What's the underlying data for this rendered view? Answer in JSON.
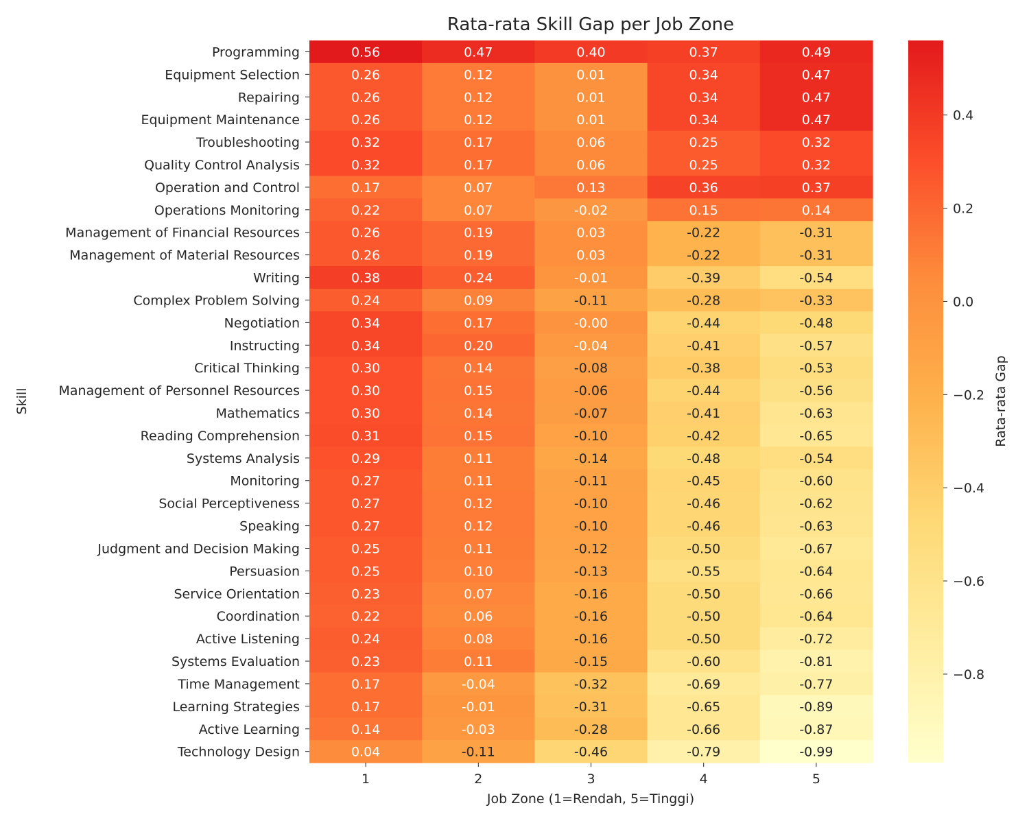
{
  "chart_data": {
    "type": "heatmap",
    "title": "Rata-rata Skill Gap per Job Zone",
    "xlabel": "Job Zone (1=Rendah, 5=Tinggi)",
    "ylabel": "Skill",
    "colorbar_label": "Rata-rata Gap",
    "colormap": "YlOrRd",
    "colorbar_range": [
      -0.99,
      0.56
    ],
    "colorbar_ticks": [
      "0.4",
      "0.2",
      "0.0",
      "−0.2",
      "−0.4",
      "−0.6",
      "−0.8"
    ],
    "x_categories": [
      "1",
      "2",
      "3",
      "4",
      "5"
    ],
    "y_categories": [
      "Programming",
      "Equipment Selection",
      "Repairing",
      "Equipment Maintenance",
      "Troubleshooting",
      "Quality Control Analysis",
      "Operation and Control",
      "Operations Monitoring",
      "Management of Financial Resources",
      "Management of Material Resources",
      "Writing",
      "Complex Problem Solving",
      "Negotiation",
      "Instructing",
      "Critical Thinking",
      "Management of Personnel Resources",
      "Mathematics",
      "Reading Comprehension",
      "Systems Analysis",
      "Monitoring",
      "Social Perceptiveness",
      "Speaking",
      "Judgment and Decision Making",
      "Persuasion",
      "Service Orientation",
      "Coordination",
      "Active Listening",
      "Systems Evaluation",
      "Time Management",
      "Learning Strategies",
      "Active Learning",
      "Technology Design"
    ],
    "values": [
      [
        "0.56",
        "0.47",
        "0.40",
        "0.37",
        "0.49"
      ],
      [
        "0.26",
        "0.12",
        "0.01",
        "0.34",
        "0.47"
      ],
      [
        "0.26",
        "0.12",
        "0.01",
        "0.34",
        "0.47"
      ],
      [
        "0.26",
        "0.12",
        "0.01",
        "0.34",
        "0.47"
      ],
      [
        "0.32",
        "0.17",
        "0.06",
        "0.25",
        "0.32"
      ],
      [
        "0.32",
        "0.17",
        "0.06",
        "0.25",
        "0.32"
      ],
      [
        "0.17",
        "0.07",
        "0.13",
        "0.36",
        "0.37"
      ],
      [
        "0.22",
        "0.07",
        "-0.02",
        "0.15",
        "0.14"
      ],
      [
        "0.26",
        "0.19",
        "0.03",
        "-0.22",
        "-0.31"
      ],
      [
        "0.26",
        "0.19",
        "0.03",
        "-0.22",
        "-0.31"
      ],
      [
        "0.38",
        "0.24",
        "-0.01",
        "-0.39",
        "-0.54"
      ],
      [
        "0.24",
        "0.09",
        "-0.11",
        "-0.28",
        "-0.33"
      ],
      [
        "0.34",
        "0.17",
        "-0.00",
        "-0.44",
        "-0.48"
      ],
      [
        "0.34",
        "0.20",
        "-0.04",
        "-0.41",
        "-0.57"
      ],
      [
        "0.30",
        "0.14",
        "-0.08",
        "-0.38",
        "-0.53"
      ],
      [
        "0.30",
        "0.15",
        "-0.06",
        "-0.44",
        "-0.56"
      ],
      [
        "0.30",
        "0.14",
        "-0.07",
        "-0.41",
        "-0.63"
      ],
      [
        "0.31",
        "0.15",
        "-0.10",
        "-0.42",
        "-0.65"
      ],
      [
        "0.29",
        "0.11",
        "-0.14",
        "-0.48",
        "-0.54"
      ],
      [
        "0.27",
        "0.11",
        "-0.11",
        "-0.45",
        "-0.60"
      ],
      [
        "0.27",
        "0.12",
        "-0.10",
        "-0.46",
        "-0.62"
      ],
      [
        "0.27",
        "0.12",
        "-0.10",
        "-0.46",
        "-0.63"
      ],
      [
        "0.25",
        "0.11",
        "-0.12",
        "-0.50",
        "-0.67"
      ],
      [
        "0.25",
        "0.10",
        "-0.13",
        "-0.55",
        "-0.64"
      ],
      [
        "0.23",
        "0.07",
        "-0.16",
        "-0.50",
        "-0.66"
      ],
      [
        "0.22",
        "0.06",
        "-0.16",
        "-0.50",
        "-0.64"
      ],
      [
        "0.24",
        "0.08",
        "-0.16",
        "-0.50",
        "-0.72"
      ],
      [
        "0.23",
        "0.11",
        "-0.15",
        "-0.60",
        "-0.81"
      ],
      [
        "0.17",
        "-0.04",
        "-0.32",
        "-0.69",
        "-0.77"
      ],
      [
        "0.17",
        "-0.01",
        "-0.31",
        "-0.65",
        "-0.89"
      ],
      [
        "0.14",
        "-0.03",
        "-0.28",
        "-0.66",
        "-0.87"
      ],
      [
        "0.04",
        "-0.11",
        "-0.46",
        "-0.79",
        "-0.99"
      ]
    ]
  }
}
